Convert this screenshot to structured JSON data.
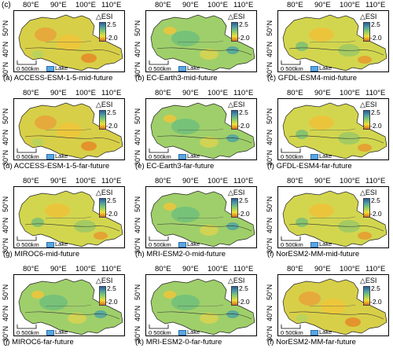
{
  "figure_label": "(c)",
  "lon_ticks": [
    "80°E",
    "90°E",
    "100°E",
    "110°E"
  ],
  "lat_ticks": [
    "30°N",
    "40°N",
    "50°N"
  ],
  "legend": {
    "title": "△ESI",
    "max": "2.5",
    "min": "-2.0",
    "colors": [
      "#2b5f9e",
      "#4fa0a0",
      "#8fd066",
      "#f2df3a",
      "#e06a14"
    ]
  },
  "scale_label": "0  500km",
  "lake_label": "Lake",
  "panels": [
    {
      "caption": "(a) ACCESS-ESM-1-5-mid-future",
      "tone": "orange"
    },
    {
      "caption": "(b) EC-Earth3-mid-future",
      "tone": "green"
    },
    {
      "caption": "(c) GFDL-ESM4-mid-future",
      "tone": "yellow"
    },
    {
      "caption": "(d) ACCESS-ESM-1-5-far-future",
      "tone": "orange"
    },
    {
      "caption": "(e) EC-Earth3-far-future",
      "tone": "green"
    },
    {
      "caption": "(f) GFDL-ESM4-far-future",
      "tone": "yellow"
    },
    {
      "caption": "(g) MIROC6-mid-future",
      "tone": "yellow"
    },
    {
      "caption": "(h) MRI-ESM2-0-mid-future",
      "tone": "green"
    },
    {
      "caption": "(i) NorESM2-MM-mid-future",
      "tone": "yellow"
    },
    {
      "caption": "(j) MIROC6-far-future",
      "tone": "green"
    },
    {
      "caption": "(k) MRI-ESM2-0-far-future",
      "tone": "green"
    },
    {
      "caption": "(l) NorESM2-MM-far-future",
      "tone": "orange"
    }
  ]
}
